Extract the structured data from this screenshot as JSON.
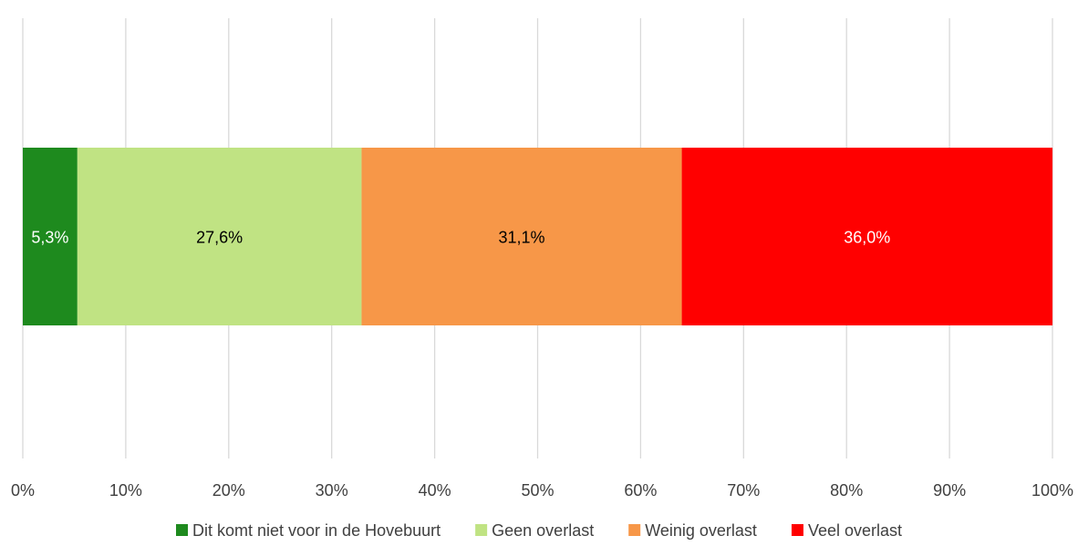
{
  "chart_data": {
    "type": "bar",
    "orientation": "horizontal",
    "stacked": "percent",
    "title": "",
    "xlabel": "",
    "ylabel": "",
    "xlim": [
      0,
      100
    ],
    "x_ticks": [
      0,
      10,
      20,
      30,
      40,
      50,
      60,
      70,
      80,
      90,
      100
    ],
    "x_tick_labels": [
      "0%",
      "10%",
      "20%",
      "30%",
      "40%",
      "50%",
      "60%",
      "70%",
      "80%",
      "90%",
      "100%"
    ],
    "grid": "vertical",
    "legend_position": "bottom",
    "categories": [
      ""
    ],
    "series": [
      {
        "name": "Dit komt niet voor in de Hovebuurt",
        "values": [
          5.3
        ],
        "label": "5,3%",
        "color": "#1e8a1e",
        "label_color": "#ffffff"
      },
      {
        "name": "Geen overlast",
        "values": [
          27.6
        ],
        "label": "27,6%",
        "color": "#c0e383",
        "label_color": "#000000"
      },
      {
        "name": "Weinig overlast",
        "values": [
          31.1
        ],
        "label": "31,1%",
        "color": "#f79748",
        "label_color": "#000000"
      },
      {
        "name": "Veel overlast",
        "values": [
          36.0
        ],
        "label": "36,0%",
        "color": "#ff0000",
        "label_color": "#ffffff"
      }
    ]
  }
}
